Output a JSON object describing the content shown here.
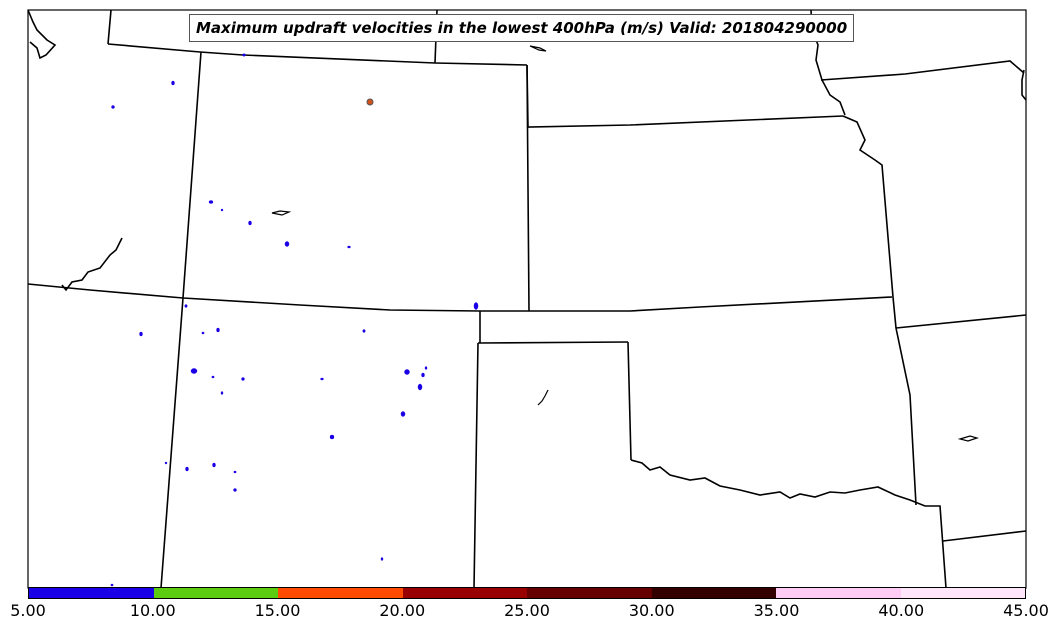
{
  "title": "Maximum updraft velocities in the lowest 400hPa (m/s) Valid: 201804290000",
  "colorbar": {
    "colors": [
      "#1a00e6",
      "#5ccc10",
      "#ff4a00",
      "#990000",
      "#660000",
      "#330000",
      "#ffccf5",
      "#ffe6fb"
    ],
    "tick_labels": [
      "5.00",
      "10.00",
      "15.00",
      "20.00",
      "25.00",
      "30.00",
      "35.00",
      "40.00",
      "45.00"
    ]
  },
  "colors": {
    "updraft_10_15": "#1a00e6",
    "updraft_20_25": "#d0521a",
    "boundary": "#000000",
    "background": "#ffffff"
  }
}
